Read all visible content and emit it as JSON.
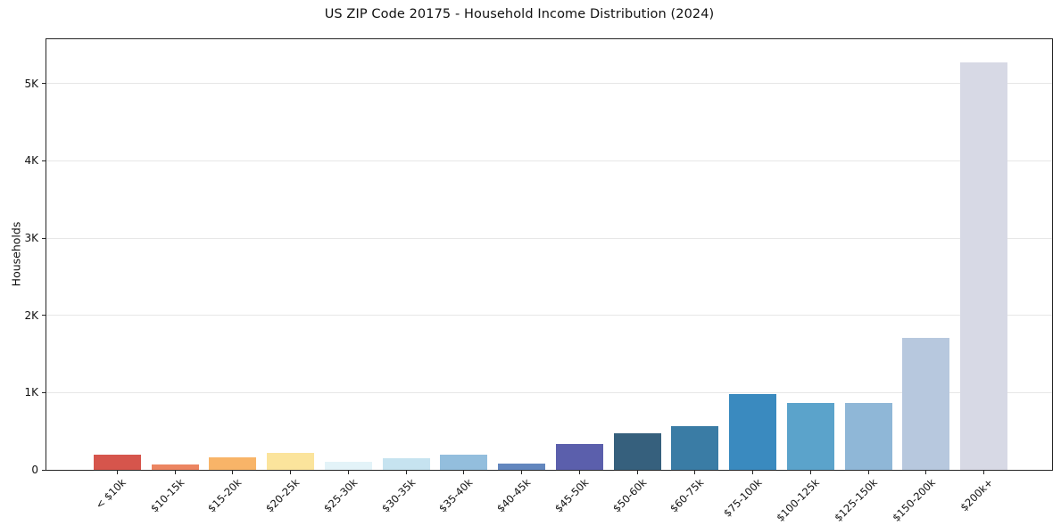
{
  "chart_data": {
    "type": "bar",
    "title": "US ZIP Code 20175 - Household Income Distribution (2024)",
    "xlabel": "",
    "ylabel": "Households",
    "categories": [
      "< $10k",
      "$10-15k",
      "$15-20k",
      "$20-25k",
      "$25-30k",
      "$30-35k",
      "$35-40k",
      "$40-45k",
      "$45-50k",
      "$50-60k",
      "$60-75k",
      "$75-100k",
      "$100-125k",
      "$125-150k",
      "$150-200k",
      "$200k+"
    ],
    "values": [
      195,
      75,
      160,
      225,
      100,
      150,
      195,
      85,
      330,
      470,
      560,
      985,
      865,
      865,
      1710,
      5280
    ],
    "bar_colors": [
      "#d6554c",
      "#ec8561",
      "#f8b468",
      "#fbe49c",
      "#e3f3f8",
      "#c6e3f0",
      "#93bedd",
      "#6286be",
      "#5b5fac",
      "#36607d",
      "#3a7ca5",
      "#3a8abf",
      "#5ba3cb",
      "#8fb7d7",
      "#b7c8de",
      "#d7d9e5"
    ],
    "yticks": {
      "values": [
        0,
        1000,
        2000,
        3000,
        4000,
        5000
      ],
      "labels": [
        "0",
        "1K",
        "2K",
        "3K",
        "4K",
        "5K"
      ]
    },
    "ylim": [
      0,
      5575
    ],
    "grid": "horizontal",
    "gridline_color": "#e7e7e7",
    "spine_color": "#262626",
    "legend": "none",
    "background_color": "#ffffff"
  }
}
